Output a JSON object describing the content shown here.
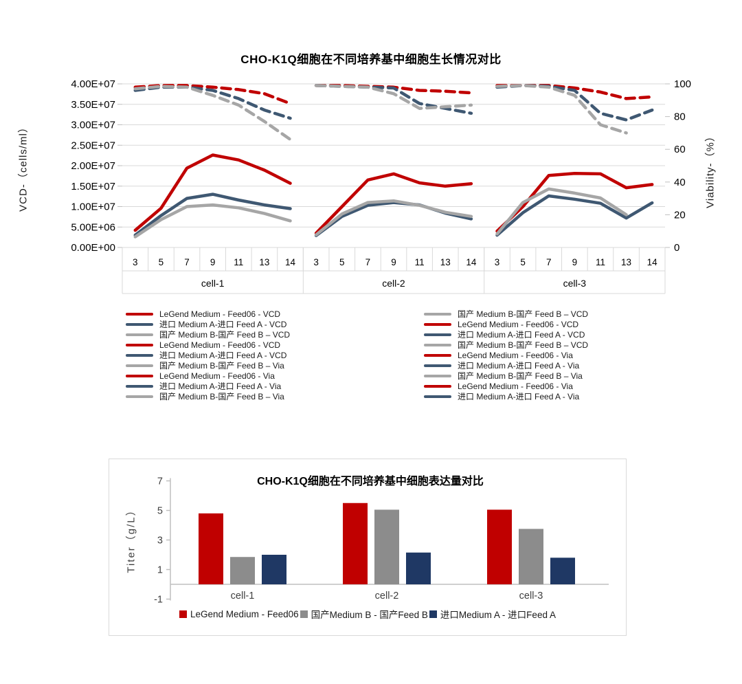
{
  "colors": {
    "red": "#c00000",
    "navy": "#3f5872",
    "gray": "#a6a6a6",
    "navy_bar": "#1f3864",
    "gray_bar": "#8c8c8c",
    "grid": "#d9d9d9",
    "axis_line": "#bfbfbf",
    "text": "#1a1a1a"
  },
  "growth_chart": {
    "title": "CHO-K1Q细胞在不同培养基中细胞生长情况对比",
    "y_left_label": "VCD-（cells/ml）",
    "y_right_label": "Viability-（%）",
    "legend_left": [
      {
        "label": "LeGend Medium - Feed06 - VCD",
        "color": "red"
      },
      {
        "label": "进口 Medium A-进口 Feed A - VCD",
        "color": "navy"
      },
      {
        "label": "国产 Medium B-国产 Feed B – VCD",
        "color": "gray"
      },
      {
        "label": "LeGend Medium - Feed06 - VCD",
        "color": "red"
      },
      {
        "label": "进口 Medium A-进口 Feed A - VCD",
        "color": "navy"
      },
      {
        "label": "国产 Medium B-国产 Feed B – Via",
        "color": "gray"
      },
      {
        "label": "LeGend Medium - Feed06 - Via",
        "color": "red"
      },
      {
        "label": "进口 Medium A-进口 Feed A - Via",
        "color": "navy"
      },
      {
        "label": "国产 Medium B-国产 Feed B – Via",
        "color": "gray"
      }
    ],
    "legend_right": [
      {
        "label": "国产 Medium B-国产 Feed B – VCD",
        "color": "gray"
      },
      {
        "label": "LeGend Medium - Feed06 - VCD",
        "color": "red"
      },
      {
        "label": "进口 Medium A-进口 Feed A - VCD",
        "color": "navy"
      },
      {
        "label": "国产 Medium B-国产 Feed B – VCD",
        "color": "gray"
      },
      {
        "label": "LeGend Medium - Feed06 - Via",
        "color": "red"
      },
      {
        "label": "进口 Medium A-进口 Feed A - Via",
        "color": "navy"
      },
      {
        "label": "国产 Medium B-国产 Feed B – Via",
        "color": "gray"
      },
      {
        "label": "LeGend Medium - Feed06 - Via",
        "color": "red"
      },
      {
        "label": "进口 Medium A-进口 Feed A - Via",
        "color": "navy"
      }
    ]
  },
  "titer_chart": {
    "title": "CHO-K1Q细胞在不同培养基中细胞表达量对比",
    "y_label": "Titer（g/L）"
  },
  "chart_data": [
    {
      "type": "line",
      "title": "CHO-K1Q细胞在不同培养基中细胞生长情况对比",
      "xlabel": "",
      "ylabel_left": "VCD-（cells/ml）",
      "ylabel_right": "Viability-（%）",
      "ylim_left": [
        0,
        40000000
      ],
      "ylim_right": [
        0,
        100
      ],
      "y_left_ticks": [
        "0.00E+00",
        "5.00E+06",
        "1.00E+07",
        "1.50E+07",
        "2.00E+07",
        "2.50E+07",
        "3.00E+07",
        "3.50E+07",
        "4.00E+07"
      ],
      "y_right_ticks": [
        "0",
        "20",
        "40",
        "60",
        "80",
        "100"
      ],
      "grid": true,
      "days": [
        "3",
        "5",
        "7",
        "9",
        "11",
        "13",
        "14"
      ],
      "groups": [
        "cell-1",
        "cell-2",
        "cell-3"
      ],
      "legend_position": "bottom-two-columns",
      "series": [
        {
          "name": "LeGend Medium - Feed06 - VCD",
          "group": "cell-1",
          "axis": "left",
          "style": "solid",
          "color": "red",
          "values_1e6": [
            4.2,
            9.6,
            19.4,
            22.6,
            21.4,
            18.9,
            15.7
          ]
        },
        {
          "name": "进口 Medium A-进口 Feed A - VCD",
          "group": "cell-1",
          "axis": "left",
          "style": "solid",
          "color": "navy",
          "values_1e6": [
            3.0,
            7.8,
            12.0,
            13.0,
            11.6,
            10.4,
            9.5
          ]
        },
        {
          "name": "国产 Medium B-国产 Feed B – VCD",
          "group": "cell-1",
          "axis": "left",
          "style": "solid",
          "color": "gray",
          "values_1e6": [
            2.6,
            6.8,
            10.0,
            10.4,
            9.7,
            8.3,
            6.5
          ]
        },
        {
          "name": "LeGend Medium - Feed06 - Via",
          "group": "cell-1",
          "axis": "right",
          "style": "dashed",
          "color": "red",
          "values_pct": [
            98,
            99,
            99,
            98,
            96.5,
            94,
            88
          ]
        },
        {
          "name": "进口 Medium A-进口 Feed A - Via",
          "group": "cell-1",
          "axis": "right",
          "style": "dashed",
          "color": "navy",
          "values_pct": [
            96,
            98,
            98,
            96,
            91,
            84,
            79
          ]
        },
        {
          "name": "国产 Medium B-国产 Feed B – Via",
          "group": "cell-1",
          "axis": "right",
          "style": "dashed",
          "color": "gray",
          "values_pct": [
            97,
            98.5,
            98,
            93,
            87,
            77,
            66
          ]
        },
        {
          "name": "LeGend Medium - Feed06 - VCD",
          "group": "cell-2",
          "axis": "left",
          "style": "solid",
          "color": "red",
          "values_1e6": [
            3.5,
            10.0,
            16.5,
            18.0,
            15.8,
            15.0,
            15.6
          ]
        },
        {
          "name": "进口 Medium A-进口 Feed A - VCD",
          "group": "cell-2",
          "axis": "left",
          "style": "solid",
          "color": "navy",
          "values_1e6": [
            2.9,
            7.6,
            10.3,
            11.0,
            10.4,
            8.4,
            7.0
          ]
        },
        {
          "name": "国产 Medium B-国产 Feed B – VCD",
          "group": "cell-2",
          "axis": "left",
          "style": "solid",
          "color": "gray",
          "values_1e6": [
            3.1,
            8.2,
            11.0,
            11.4,
            10.3,
            8.6,
            7.6
          ]
        },
        {
          "name": "LeGend Medium - Feed06 - Via",
          "group": "cell-2",
          "axis": "right",
          "style": "dashed",
          "color": "red",
          "values_pct": [
            99,
            99,
            98.5,
            98,
            96,
            95.5,
            94.5
          ]
        },
        {
          "name": "进口 Medium A-进口 Feed A - Via",
          "group": "cell-2",
          "axis": "right",
          "style": "dashed",
          "color": "navy",
          "values_pct": [
            99,
            98.5,
            98,
            97.5,
            88,
            85,
            82
          ]
        },
        {
          "name": "国产 Medium B-国产 Feed B – Via",
          "group": "cell-2",
          "axis": "right",
          "style": "dashed",
          "color": "gray",
          "values_pct": [
            99,
            98.5,
            98,
            94,
            85,
            86,
            87
          ]
        },
        {
          "name": "LeGend Medium - Feed06 - VCD",
          "group": "cell-3",
          "axis": "left",
          "style": "solid",
          "color": "red",
          "values_1e6": [
            4.0,
            10.0,
            17.6,
            18.1,
            18.0,
            14.6,
            15.4
          ]
        },
        {
          "name": "进口 Medium A-进口 Feed A - VCD",
          "group": "cell-3",
          "axis": "left",
          "style": "solid",
          "color": "navy",
          "values_1e6": [
            3.0,
            8.5,
            12.6,
            11.8,
            10.8,
            7.2,
            10.9
          ]
        },
        {
          "name": "国产 Medium B-国产 Feed B – VCD",
          "group": "cell-3",
          "axis": "left",
          "style": "solid",
          "color": "gray",
          "values_1e6": [
            3.3,
            11.0,
            14.3,
            13.3,
            12.1,
            8.0,
            null
          ]
        },
        {
          "name": "LeGend Medium - Feed06 - Via",
          "group": "cell-3",
          "axis": "right",
          "style": "dashed",
          "color": "red",
          "values_pct": [
            99,
            99,
            99,
            97.5,
            95,
            91,
            92
          ]
        },
        {
          "name": "进口 Medium A-进口 Feed A - Via",
          "group": "cell-3",
          "axis": "right",
          "style": "dashed",
          "color": "navy",
          "values_pct": [
            98,
            99,
            98.5,
            96,
            82,
            78,
            84
          ]
        },
        {
          "name": "国产 Medium B-国产 Feed B – Via",
          "group": "cell-3",
          "axis": "right",
          "style": "dashed",
          "color": "gray",
          "values_pct": [
            98.5,
            99,
            98,
            93,
            75,
            70,
            null
          ]
        }
      ]
    },
    {
      "type": "bar",
      "title": "CHO-K1Q细胞在不同培养基中细胞表达量对比",
      "xlabel": "",
      "ylabel": "Titer（g/L）",
      "ylim": [
        -1,
        7
      ],
      "yticks": [
        "-1",
        "1",
        "3",
        "5",
        "7"
      ],
      "grid": false,
      "legend_position": "bottom",
      "categories": [
        "cell-1",
        "cell-2",
        "cell-3"
      ],
      "series": [
        {
          "name": "LeGend Medium - Feed06",
          "color": "red",
          "values": [
            4.8,
            5.5,
            5.05
          ]
        },
        {
          "name": "国产Medium B - 国产Feed B",
          "color": "gray_bar",
          "values": [
            1.85,
            5.05,
            3.75
          ]
        },
        {
          "name": "进口Medium A - 进口Feed A",
          "color": "navy_bar",
          "values": [
            2.0,
            2.15,
            1.8
          ]
        }
      ]
    }
  ]
}
